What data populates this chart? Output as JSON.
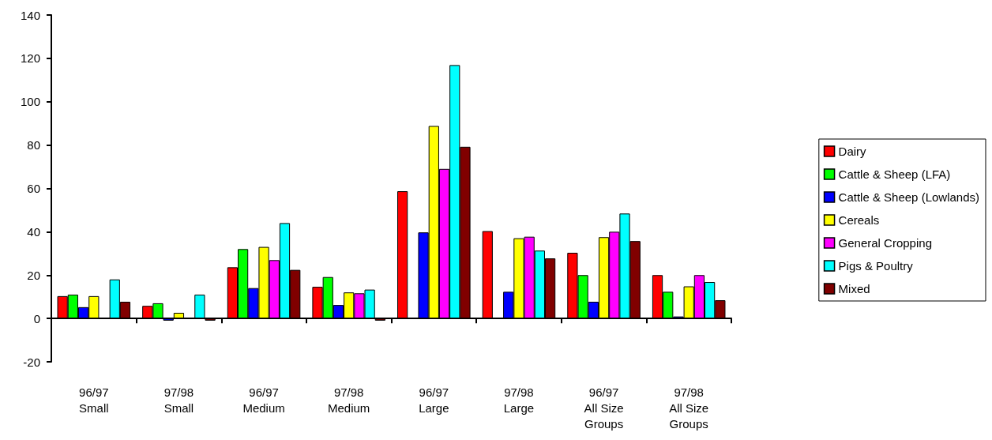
{
  "chart_data": {
    "type": "bar",
    "categories": [
      "96/97\nSmall",
      "97/98\nSmall",
      "96/97\nMedium",
      "97/98\nMedium",
      "96/97\nLarge",
      "97/98\nLarge",
      "96/97\nAll Size\nGroups",
      "97/98\nAll Size\nGroups"
    ],
    "series": [
      {
        "name": "Dairy",
        "color": "#ff0000",
        "values": [
          10.3,
          5.8,
          23.6,
          14.6,
          58.7,
          40.3,
          30.3,
          20
        ]
      },
      {
        "name": "Cattle & Sheep (LFA)",
        "color": "#00ff00",
        "values": [
          11,
          7,
          32,
          19.1,
          null,
          null,
          20,
          12.3
        ]
      },
      {
        "name": "Cattle & Sheep (Lowlands)",
        "color": "#0000ff",
        "values": [
          5.2,
          -1,
          14,
          6.2,
          39.7,
          12.3,
          7.7,
          0.9
        ]
      },
      {
        "name": "Cereals",
        "color": "#ffff00",
        "values": [
          10.3,
          2.6,
          33,
          12,
          88.8,
          37,
          37.5,
          14.8
        ]
      },
      {
        "name": "General Cropping",
        "color": "#ff00ff",
        "values": [
          null,
          null,
          26.9,
          11.6,
          69,
          37.7,
          40,
          20
        ]
      },
      {
        "name": "Pigs & Poultry",
        "color": "#00ffff",
        "values": [
          18,
          11,
          44,
          13.3,
          116.9,
          31.3,
          48.4,
          16.8
        ]
      },
      {
        "name": "Mixed",
        "color": "#800000",
        "values": [
          7.7,
          -1,
          22.4,
          -1,
          79.2,
          27.7,
          35.7,
          8.4
        ]
      }
    ],
    "ylim": [
      -20,
      140
    ],
    "yticks": [
      -20,
      0,
      20,
      40,
      60,
      80,
      100,
      120,
      140
    ],
    "legend": "right"
  }
}
